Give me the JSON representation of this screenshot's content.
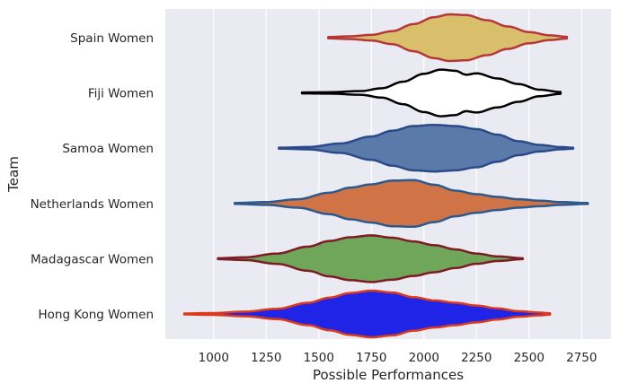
{
  "chart_data": {
    "type": "violin",
    "orientation": "horizontal",
    "xlabel": "Possible Performances",
    "ylabel": "Team",
    "xlim": [
      770,
      2890
    ],
    "xticks": [
      1000,
      1250,
      1500,
      1750,
      2000,
      2250,
      2500,
      2750
    ],
    "grid": true,
    "background": "#eaeaf2",
    "categories": [
      "Spain Women",
      "Fiji Women",
      "Samoa Women",
      "Netherlands Women",
      "Madagascar Women",
      "Hong Kong Women"
    ],
    "series": [
      {
        "category": "Spain Women",
        "fill": "#d9bf6b",
        "stroke": "#b5373a",
        "min": 1545,
        "max": 2680,
        "profile": [
          [
            1545,
            0.03
          ],
          [
            1650,
            0.06
          ],
          [
            1750,
            0.12
          ],
          [
            1850,
            0.28
          ],
          [
            1950,
            0.58
          ],
          [
            2050,
            0.88
          ],
          [
            2120,
            1.0
          ],
          [
            2200,
            0.97
          ],
          [
            2300,
            0.75
          ],
          [
            2400,
            0.48
          ],
          [
            2500,
            0.24
          ],
          [
            2600,
            0.1
          ],
          [
            2680,
            0.04
          ]
        ]
      },
      {
        "category": "Fiji Women",
        "fill": "#ffffff",
        "stroke": "#000000",
        "min": 1420,
        "max": 2650,
        "profile": [
          [
            1420,
            0.02
          ],
          [
            1550,
            0.03
          ],
          [
            1700,
            0.08
          ],
          [
            1800,
            0.2
          ],
          [
            1900,
            0.48
          ],
          [
            2000,
            0.82
          ],
          [
            2080,
            1.0
          ],
          [
            2150,
            0.95
          ],
          [
            2200,
            0.78
          ],
          [
            2250,
            0.84
          ],
          [
            2350,
            0.62
          ],
          [
            2450,
            0.38
          ],
          [
            2550,
            0.14
          ],
          [
            2650,
            0.04
          ]
        ]
      },
      {
        "category": "Samoa Women",
        "fill": "#5a7aaa",
        "stroke": "#2a4a8a",
        "min": 1310,
        "max": 2710,
        "profile": [
          [
            1310,
            0.02
          ],
          [
            1450,
            0.05
          ],
          [
            1600,
            0.2
          ],
          [
            1750,
            0.5
          ],
          [
            1850,
            0.75
          ],
          [
            1950,
            0.95
          ],
          [
            2050,
            1.0
          ],
          [
            2150,
            0.95
          ],
          [
            2250,
            0.82
          ],
          [
            2350,
            0.58
          ],
          [
            2450,
            0.3
          ],
          [
            2550,
            0.14
          ],
          [
            2650,
            0.05
          ],
          [
            2710,
            0.02
          ]
        ]
      },
      {
        "category": "Netherlands Women",
        "fill": "#d07447",
        "stroke": "#2d5a8c",
        "min": 1100,
        "max": 2780,
        "profile": [
          [
            1100,
            0.02
          ],
          [
            1250,
            0.06
          ],
          [
            1400,
            0.18
          ],
          [
            1550,
            0.46
          ],
          [
            1650,
            0.68
          ],
          [
            1750,
            0.82
          ],
          [
            1850,
            0.98
          ],
          [
            1950,
            1.0
          ],
          [
            2050,
            0.8
          ],
          [
            2150,
            0.55
          ],
          [
            2250,
            0.4
          ],
          [
            2350,
            0.28
          ],
          [
            2450,
            0.18
          ],
          [
            2550,
            0.12
          ],
          [
            2650,
            0.06
          ],
          [
            2780,
            0.02
          ]
        ]
      },
      {
        "category": "Madagascar Women",
        "fill": "#6fa65a",
        "stroke": "#7d1c24",
        "min": 1020,
        "max": 2470,
        "profile": [
          [
            1020,
            0.02
          ],
          [
            1150,
            0.06
          ],
          [
            1300,
            0.22
          ],
          [
            1450,
            0.52
          ],
          [
            1550,
            0.76
          ],
          [
            1650,
            0.92
          ],
          [
            1750,
            1.0
          ],
          [
            1850,
            0.9
          ],
          [
            1950,
            0.74
          ],
          [
            2050,
            0.58
          ],
          [
            2150,
            0.4
          ],
          [
            2250,
            0.22
          ],
          [
            2350,
            0.1
          ],
          [
            2470,
            0.02
          ]
        ]
      },
      {
        "category": "Hong Kong Women",
        "fill": "#1f24e6",
        "stroke": "#dc3a1e",
        "min": 860,
        "max": 2600,
        "profile": [
          [
            860,
            0.02
          ],
          [
            1000,
            0.04
          ],
          [
            1150,
            0.1
          ],
          [
            1300,
            0.22
          ],
          [
            1450,
            0.48
          ],
          [
            1550,
            0.7
          ],
          [
            1650,
            0.9
          ],
          [
            1750,
            1.0
          ],
          [
            1850,
            0.92
          ],
          [
            1950,
            0.72
          ],
          [
            2050,
            0.58
          ],
          [
            2150,
            0.48
          ],
          [
            2250,
            0.36
          ],
          [
            2350,
            0.24
          ],
          [
            2450,
            0.12
          ],
          [
            2550,
            0.06
          ],
          [
            2600,
            0.03
          ]
        ]
      }
    ]
  }
}
